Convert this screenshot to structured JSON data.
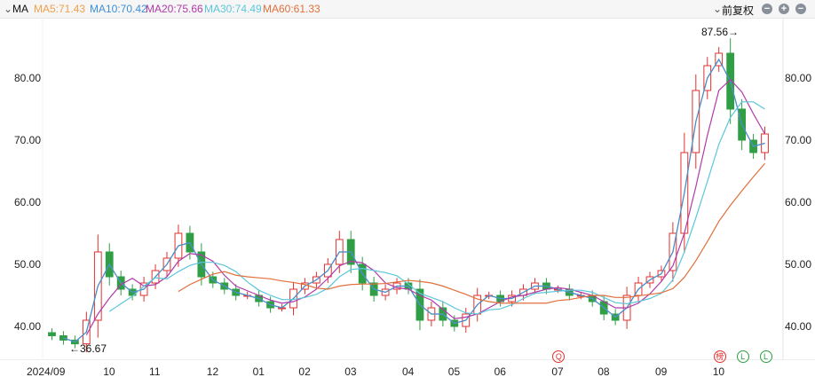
{
  "header": {
    "indicator": "MA",
    "ma": [
      {
        "label": "MA5:71.43",
        "color": "#f0a04b"
      },
      {
        "label": "MA10:70.42",
        "color": "#3d8fd6"
      },
      {
        "label": "MA20:75.66",
        "color": "#b03aa8"
      },
      {
        "label": "MA30:74.49",
        "color": "#5cc6dc"
      },
      {
        "label": "MA60:61.33",
        "color": "#e0703c"
      }
    ],
    "adjust": "前复权",
    "controls": [
      "minus-icon",
      "plus-icon",
      "minus-icon"
    ]
  },
  "chart_data": {
    "type": "candlestick",
    "ylim": [
      35,
      88
    ],
    "y_ticks": [
      "80.00",
      "70.00",
      "60.00",
      "50.00",
      "40.00"
    ],
    "y_tick_values": [
      80,
      70,
      60,
      50,
      40
    ],
    "x_ticks": [
      {
        "label": "2024/09",
        "index": 0
      },
      {
        "label": "10",
        "index": 5
      },
      {
        "label": "11",
        "index": 9
      },
      {
        "label": "12",
        "index": 14
      },
      {
        "label": "01",
        "index": 18
      },
      {
        "label": "02",
        "index": 22
      },
      {
        "label": "03",
        "index": 26
      },
      {
        "label": "04",
        "index": 31
      },
      {
        "label": "05",
        "index": 35
      },
      {
        "label": "06",
        "index": 39
      },
      {
        "label": "07",
        "index": 44
      },
      {
        "label": "08",
        "index": 48
      },
      {
        "label": "09",
        "index": 53
      },
      {
        "label": "10",
        "index": 58
      }
    ],
    "closes": [
      38.5,
      37.8,
      37.2,
      41,
      52,
      48,
      46,
      45,
      47,
      49,
      51,
      55,
      52,
      48,
      47,
      46,
      45,
      45,
      44,
      43,
      43,
      46,
      47,
      48,
      50,
      54,
      50,
      47,
      45,
      46,
      47,
      46,
      41,
      43,
      41,
      40,
      42,
      45,
      45,
      44,
      45,
      46,
      47,
      46,
      46,
      45,
      45,
      44,
      42,
      41,
      45,
      47,
      48,
      49,
      55,
      68,
      78,
      82,
      84,
      75,
      70,
      68,
      71
    ],
    "up_color": "#e0312f",
    "down_color": "#2f9e44",
    "annotations": {
      "high": "87.56→",
      "low": "←36.67"
    },
    "grid": false
  },
  "markers": [
    {
      "glyph": "Q",
      "color": "#e0312f",
      "index": 44
    },
    {
      "glyph": "榜",
      "color": "#e0312f",
      "index": 58
    },
    {
      "glyph": "L",
      "color": "#2f9e44",
      "index": 60
    },
    {
      "glyph": "L",
      "color": "#2f9e44",
      "index": 62
    }
  ]
}
